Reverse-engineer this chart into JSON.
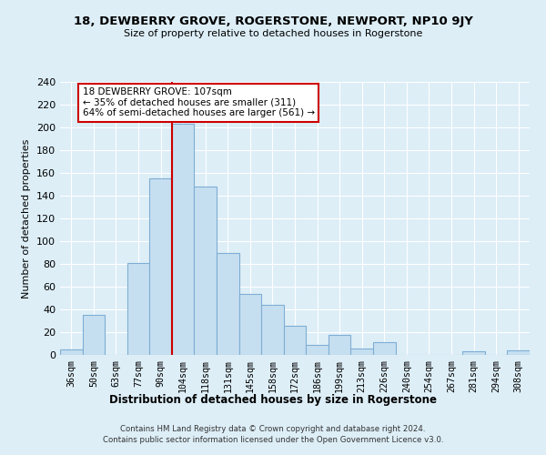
{
  "title": "18, DEWBERRY GROVE, ROGERSTONE, NEWPORT, NP10 9JY",
  "subtitle": "Size of property relative to detached houses in Rogerstone",
  "xlabel": "Distribution of detached houses by size in Rogerstone",
  "ylabel": "Number of detached properties",
  "bar_labels": [
    "36sqm",
    "50sqm",
    "63sqm",
    "77sqm",
    "90sqm",
    "104sqm",
    "118sqm",
    "131sqm",
    "145sqm",
    "158sqm",
    "172sqm",
    "186sqm",
    "199sqm",
    "213sqm",
    "226sqm",
    "240sqm",
    "254sqm",
    "267sqm",
    "281sqm",
    "294sqm",
    "308sqm"
  ],
  "bar_values": [
    5,
    35,
    0,
    81,
    155,
    203,
    148,
    90,
    54,
    44,
    26,
    9,
    18,
    6,
    11,
    0,
    0,
    0,
    3,
    0,
    4
  ],
  "bar_color": "#c6dff0",
  "bar_edge_color": "#7eaed4",
  "vline_x_index": 5,
  "vline_color": "#cc0000",
  "annotation_title": "18 DEWBERRY GROVE: 107sqm",
  "annotation_line1": "← 35% of detached houses are smaller (311)",
  "annotation_line2": "64% of semi-detached houses are larger (561) →",
  "annotation_box_color": "#ffffff",
  "annotation_box_edge": "#cc0000",
  "ylim": [
    0,
    240
  ],
  "yticks": [
    0,
    20,
    40,
    60,
    80,
    100,
    120,
    140,
    160,
    180,
    200,
    220,
    240
  ],
  "footer_line1": "Contains HM Land Registry data © Crown copyright and database right 2024.",
  "footer_line2": "Contains public sector information licensed under the Open Government Licence v3.0.",
  "bg_color": "#ddeef7",
  "plot_bg_color": "#ddeef7",
  "grid_color": "#ffffff"
}
